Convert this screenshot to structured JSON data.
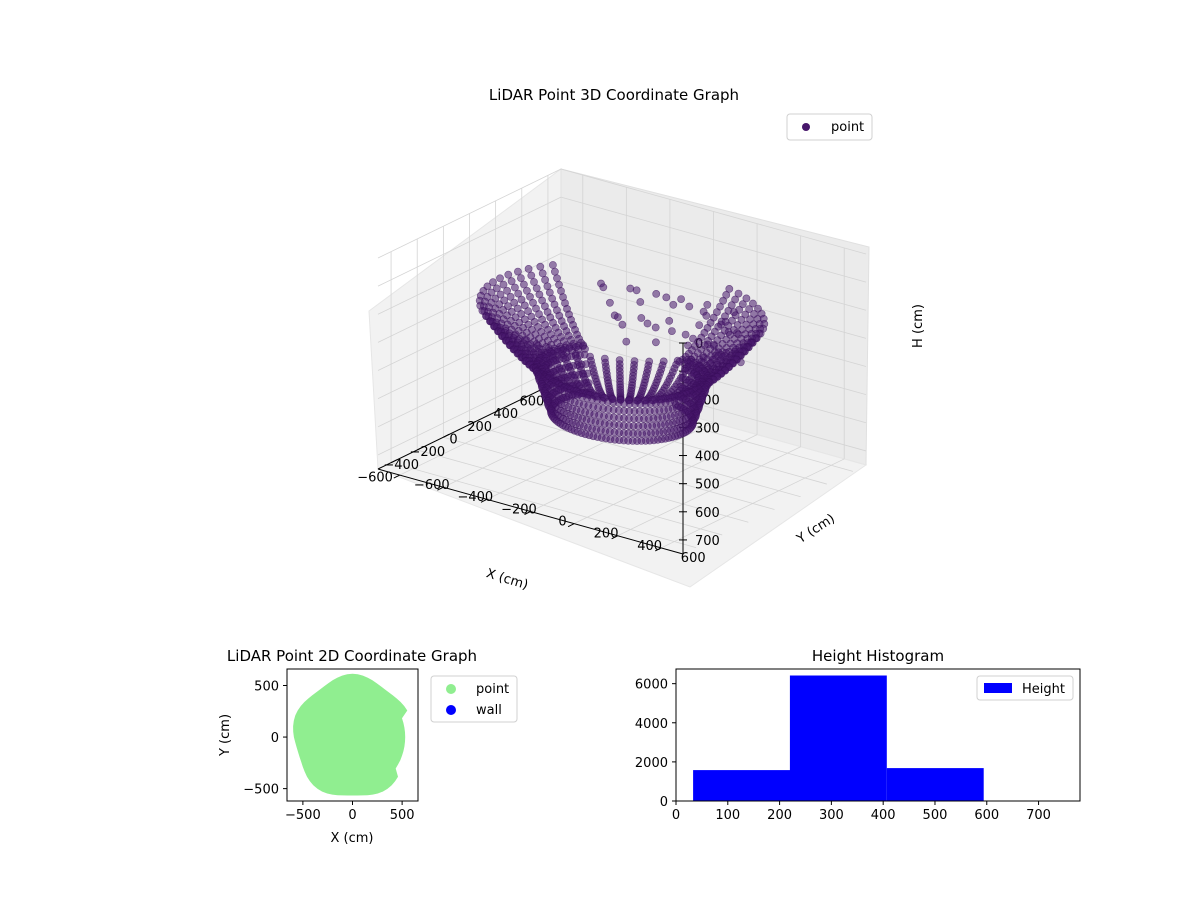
{
  "chart_data": [
    {
      "type": "scatter",
      "projection": "3d",
      "title": "LiDAR Point 3D Coordinate Graph",
      "xlabel": "X (cm)",
      "ylabel": "Y (cm)",
      "zlabel": "H (cm)",
      "xlim": [
        -700,
        700
      ],
      "ylim": [
        -700,
        700
      ],
      "zlim": [
        0,
        750
      ],
      "z_axis_inverted": true,
      "x_ticks": [
        "−600",
        "−400",
        "−200",
        "0",
        "200",
        "400",
        "600"
      ],
      "y_ticks": [
        "−600",
        "−400",
        "−200",
        "0",
        "200",
        "400",
        "600"
      ],
      "z_ticks": [
        "0",
        "100",
        "200",
        "300",
        "400",
        "500",
        "600",
        "700"
      ],
      "legend": {
        "position": "top-right",
        "entries": [
          "point"
        ]
      },
      "colors": {
        "point": "#47176b",
        "point_edge": "#3b0f5c"
      },
      "grid": true,
      "series": [
        {
          "name": "point",
          "shape": "bowl of points",
          "rim_radius": 560,
          "rim_height": 200,
          "floor_radius": 300,
          "floor_height": 420,
          "min_height": 30,
          "max_height": 590
        }
      ]
    },
    {
      "type": "scatter",
      "title": "LiDAR Point 2D Coordinate Graph",
      "xlabel": "X (cm)",
      "ylabel": "Y (cm)",
      "xlim": [
        -660,
        660
      ],
      "ylim": [
        -620,
        660
      ],
      "x_ticks": [
        "−500",
        "0",
        "500"
      ],
      "y_ticks": [
        "−500",
        "0",
        "500"
      ],
      "legend": {
        "position": "outside right",
        "entries": [
          "point",
          "wall"
        ]
      },
      "colors": {
        "point": "#90ee90",
        "wall": "#0000ff"
      },
      "series": [
        {
          "name": "point",
          "shape": "filled disc",
          "radius": 590
        },
        {
          "name": "wall",
          "values": []
        }
      ]
    },
    {
      "type": "bar",
      "title": "Height Histogram",
      "xlim": [
        0,
        780
      ],
      "ylim": [
        0,
        6750
      ],
      "x_ticks": [
        "0",
        "100",
        "200",
        "300",
        "400",
        "500",
        "600",
        "700"
      ],
      "y_ticks": [
        "0",
        "2000",
        "4000",
        "6000"
      ],
      "legend": {
        "position": "top-right",
        "entries": [
          "Height"
        ]
      },
      "colors": {
        "bar": "#0000ff"
      },
      "series": [
        {
          "name": "Height",
          "bins": [
            {
              "x0": 33,
              "x1": 220,
              "count": 1580
            },
            {
              "x0": 220,
              "x1": 407,
              "count": 6420
            },
            {
              "x0": 407,
              "x1": 594,
              "count": 1680
            },
            {
              "x0": 594,
              "x1": 781,
              "count": 0
            }
          ]
        }
      ]
    }
  ]
}
